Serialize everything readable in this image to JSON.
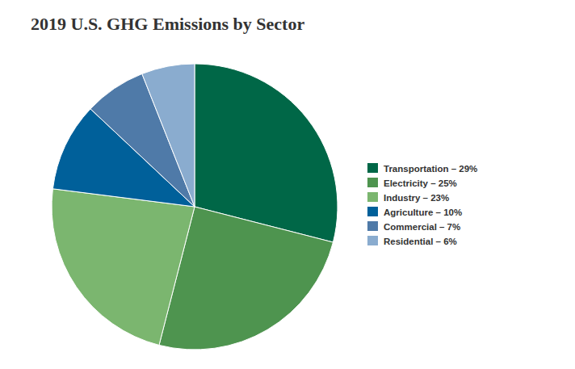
{
  "chart_data": {
    "type": "pie",
    "title": "2019 U.S. GHG Emissions by Sector",
    "categories": [
      "Transportation – 29%",
      "Electricity – 25%",
      "Industry – 23%",
      "Agriculture – 10%",
      "Commercial – 7%",
      "Residential – 6%"
    ],
    "values": [
      29,
      25,
      23,
      10,
      7,
      6
    ],
    "colors": [
      "#006747",
      "#4e944f",
      "#7bb66f",
      "#00609a",
      "#4f7aa8",
      "#8aaccf"
    ],
    "legend": "right"
  }
}
